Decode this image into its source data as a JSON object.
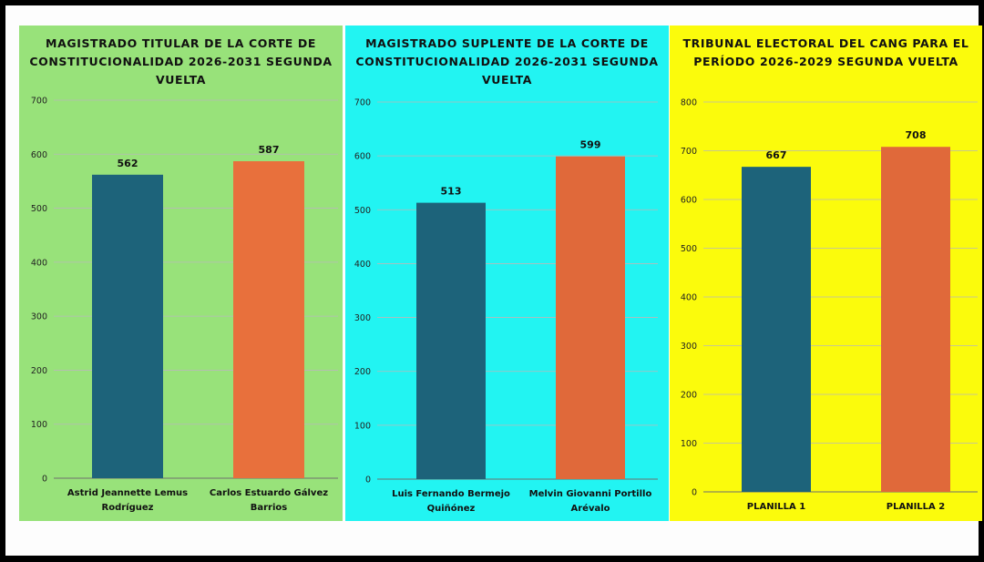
{
  "chart_data": [
    {
      "type": "bar",
      "title": "MAGISTRADO TITULAR DE LA CORTE DE CONSTITUCIONALIDAD 2026-2031 SEGUNDA VUELTA",
      "categories": [
        [
          "Astrid Jeannette Lemus",
          "Rodríguez"
        ],
        [
          "Carlos Estuardo Gálvez",
          "Barrios"
        ]
      ],
      "values": [
        562,
        587
      ],
      "ylim": [
        0,
        700
      ],
      "yticks": [
        0,
        100,
        200,
        300,
        400,
        500,
        600,
        700
      ],
      "grid": true,
      "background": "#98e27a",
      "bar_colors": [
        "#1d637a",
        "#e8703c"
      ]
    },
    {
      "type": "bar",
      "title": "MAGISTRADO SUPLENTE DE LA CORTE DE CONSTITUCIONALIDAD 2026-2031 SEGUNDA VUELTA",
      "categories": [
        [
          "Luis Fernando Bermejo",
          "Quiñónez"
        ],
        [
          "Melvin Giovanni Portillo",
          "Arévalo"
        ]
      ],
      "values": [
        513,
        599
      ],
      "ylim": [
        0,
        700
      ],
      "yticks": [
        0,
        100,
        200,
        300,
        400,
        500,
        600,
        700
      ],
      "grid": true,
      "background": "#22f4f2",
      "bar_colors": [
        "#1d637a",
        "#e0693a"
      ]
    },
    {
      "type": "bar",
      "title": "TRIBUNAL ELECTORAL DEL CANG PARA EL PERÍODO 2026-2029 SEGUNDA VUELTA",
      "categories": [
        [
          "PLANILLA 1"
        ],
        [
          "PLANILLA 2"
        ]
      ],
      "values": [
        667,
        708
      ],
      "ylim": [
        0,
        800
      ],
      "yticks": [
        0,
        100,
        200,
        300,
        400,
        500,
        600,
        700,
        800
      ],
      "grid": true,
      "background": "#fbfb0c",
      "bar_colors": [
        "#1d637a",
        "#e0693a"
      ]
    }
  ]
}
